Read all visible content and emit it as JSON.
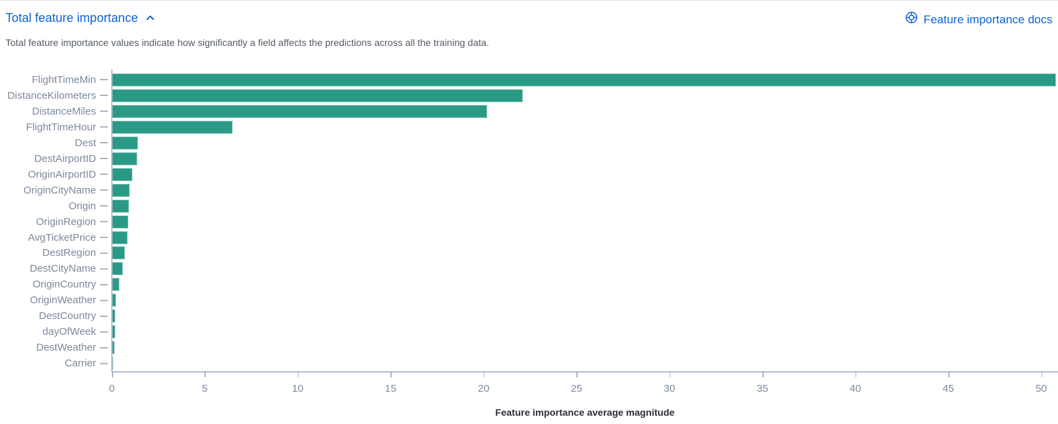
{
  "header": {
    "title": "Total feature importance",
    "docs_link_label": "Feature importance docs",
    "description": "Total feature importance values indicate how significantly a field affects the predictions across all the training data.",
    "link_color": "#0c63d0"
  },
  "icons": {
    "collapse": "chevron-up-icon",
    "docs": "life-ring-icon"
  },
  "chart_data": {
    "type": "bar",
    "orientation": "horizontal",
    "title": "Total feature importance",
    "xlabel": "Feature importance average magnitude",
    "ylabel": "",
    "categories": [
      "FlightTimeMin",
      "DistanceKilometers",
      "DistanceMiles",
      "FlightTimeHour",
      "Dest",
      "DestAirportID",
      "OriginAirportID",
      "OriginCityName",
      "Origin",
      "OriginRegion",
      "AvgTicketPrice",
      "DestRegion",
      "DestCityName",
      "OriginCountry",
      "OriginWeather",
      "DestCountry",
      "dayOfWeek",
      "DestWeather",
      "Carrier"
    ],
    "values": [
      50.8,
      22.1,
      20.2,
      6.5,
      1.4,
      1.35,
      1.1,
      0.96,
      0.94,
      0.89,
      0.85,
      0.71,
      0.6,
      0.41,
      0.22,
      0.2,
      0.17,
      0.14,
      0.06
    ],
    "x_ticks": [
      0,
      5,
      10,
      15,
      20,
      25,
      30,
      35,
      40,
      45,
      50
    ],
    "xlim": [
      0,
      50.9
    ],
    "grid": false,
    "legend": "none",
    "bar_color": "#2a9a86",
    "axis_label_color": "#7d899d"
  }
}
